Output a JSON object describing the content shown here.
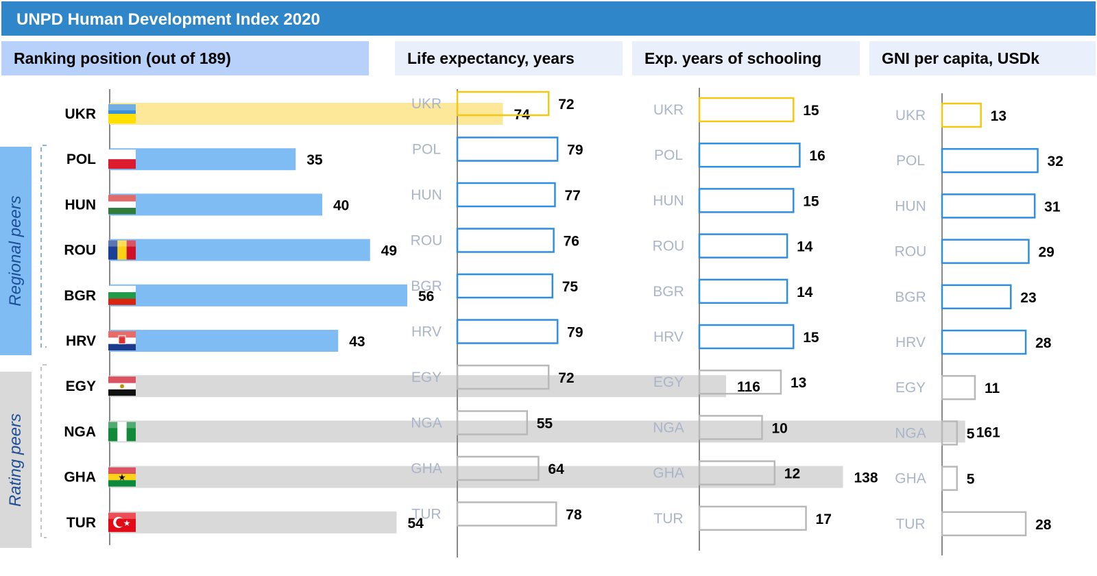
{
  "header": {
    "title": "UNPD Human Development Index 2020"
  },
  "groups": {
    "regional": {
      "label": "Regional peers"
    },
    "rating": {
      "label": "Rating peers"
    }
  },
  "colors": {
    "title_bar": "#2f87c9",
    "ukraine_fill": "#fde89a",
    "ukraine_outline": "#f2c811",
    "regional_fill": "#7fbcf4",
    "regional_outline": "#2f8ee0",
    "rating_fill": "#d9d9d9",
    "rating_outline": "#b8b8b8"
  },
  "chart_data": [
    {
      "type": "bar",
      "orientation": "horizontal",
      "title": "Ranking position (out of 189)",
      "categories": [
        "UKR",
        "POL",
        "HUN",
        "ROU",
        "BGR",
        "HRV",
        "EGY",
        "NGA",
        "GHA",
        "TUR"
      ],
      "category_groups": [
        "focus",
        "regional",
        "regional",
        "regional",
        "regional",
        "regional",
        "rating",
        "rating",
        "rating",
        "rating"
      ],
      "values": [
        74,
        35,
        40,
        49,
        56,
        43,
        116,
        161,
        138,
        54
      ],
      "flags": [
        "ukraine-flag",
        "poland-flag",
        "hungary-flag",
        "romania-flag",
        "bulgaria-flag",
        "croatia-flag",
        "egypt-flag",
        "nigeria-flag",
        "ghana-flag",
        "turkey-flag"
      ]
    },
    {
      "type": "bar",
      "orientation": "horizontal",
      "title": "Life expectancy, years",
      "categories": [
        "UKR",
        "POL",
        "HUN",
        "ROU",
        "BGR",
        "HRV",
        "EGY",
        "NGA",
        "GHA",
        "TUR"
      ],
      "values": [
        72,
        79,
        77,
        76,
        75,
        79,
        72,
        55,
        64,
        78
      ]
    },
    {
      "type": "bar",
      "orientation": "horizontal",
      "title": "Exp. years of schooling",
      "categories": [
        "UKR",
        "POL",
        "HUN",
        "ROU",
        "BGR",
        "HRV",
        "EGY",
        "NGA",
        "GHA",
        "TUR"
      ],
      "values": [
        15,
        16,
        15,
        14,
        14,
        15,
        13,
        10,
        12,
        17
      ]
    },
    {
      "type": "bar",
      "orientation": "horizontal",
      "title": "GNI per capita, USDk",
      "categories": [
        "UKR",
        "POL",
        "HUN",
        "ROU",
        "BGR",
        "HRV",
        "EGY",
        "NGA",
        "GHA",
        "TUR"
      ],
      "values": [
        13,
        32,
        31,
        29,
        23,
        28,
        11,
        5,
        5,
        28
      ]
    }
  ]
}
